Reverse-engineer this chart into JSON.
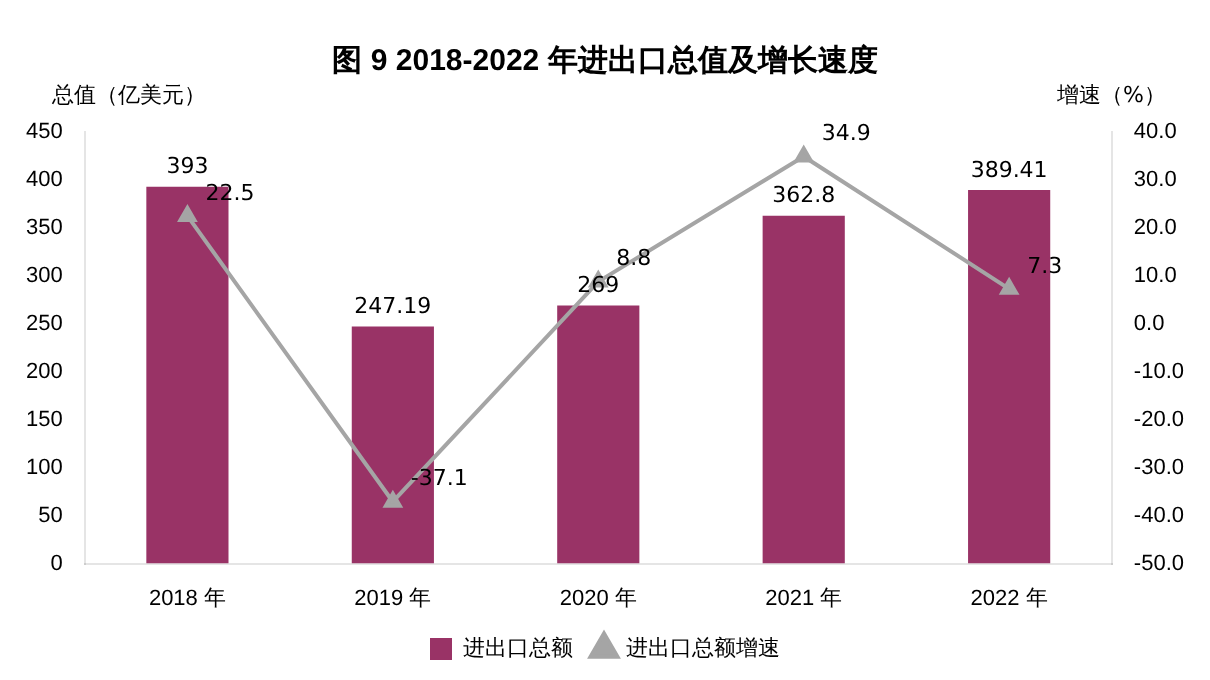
{
  "chart_data": {
    "type": "bar",
    "title": "图 9 2018-2022 年进出口总值及增长速度",
    "ylabel": "总值（亿美元）",
    "y2label": "增速（%）",
    "categories": [
      "2018 年",
      "2019 年",
      "2020 年",
      "2021 年",
      "2022 年"
    ],
    "series": [
      {
        "name": "进出口总额",
        "color": "#993366",
        "values": [
          393,
          247.19,
          269,
          362.8,
          389.41
        ]
      },
      {
        "name": "进出口总额增速",
        "type": "line",
        "axis": "y2",
        "color": "#a5a5a5",
        "marker": "triangle",
        "values": [
          22.5,
          -37.1,
          8.8,
          34.9,
          7.3
        ]
      }
    ],
    "data_labels": true,
    "grid": false,
    "legend": "bottom",
    "ylim": [
      0,
      450
    ],
    "yticks": [
      0,
      50,
      100,
      150,
      200,
      250,
      300,
      350,
      400,
      450
    ],
    "y2lim": [
      -50,
      40
    ],
    "y2ticks": [
      {
        "value": -50,
        "label": "-50.0"
      },
      {
        "value": -40,
        "label": "-40.0"
      },
      {
        "value": -30,
        "label": "-30.0"
      },
      {
        "value": -20,
        "label": "-20.0"
      },
      {
        "value": -10,
        "label": "-10.0"
      },
      {
        "value": 0,
        "label": "0.0"
      },
      {
        "value": 10,
        "label": "10.0"
      },
      {
        "value": 20,
        "label": "20.0"
      },
      {
        "value": 30,
        "label": "30.0"
      },
      {
        "value": 40,
        "label": "40.0"
      }
    ]
  }
}
